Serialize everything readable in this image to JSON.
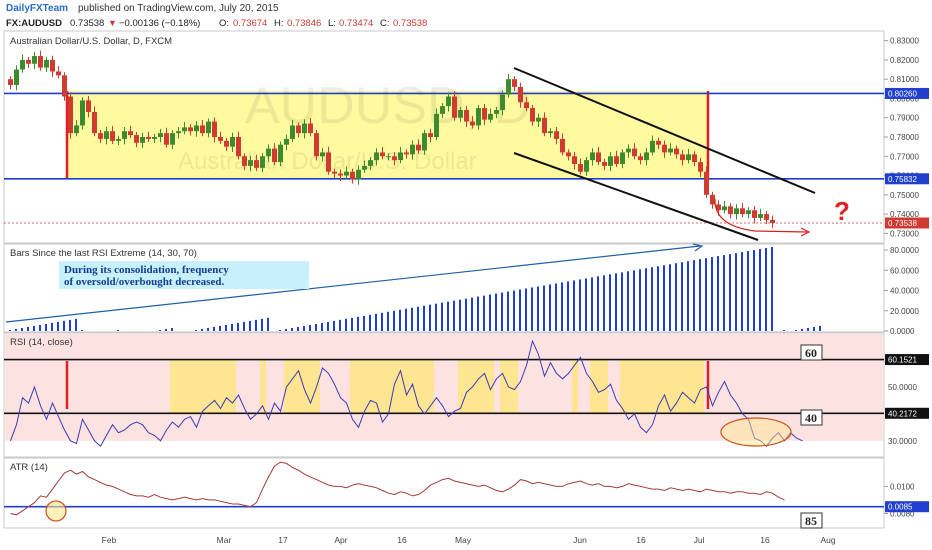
{
  "header": {
    "brand": "DailyFXTeam",
    "published": " published on TradingView.com, July 20, 2015",
    "symbol": "FX:AUDUSD",
    "price": "0.73538",
    "change": "−0.00136 (−0.18%)",
    "o_label": "O:",
    "o_value": "0.73674",
    "h_label": "H:",
    "h_value": "0.73846",
    "l_label": "L:",
    "l_value": "0.73474",
    "c_label": "C:",
    "c_value": "0.73538"
  },
  "colors": {
    "up": "#3d8b2e",
    "down": "#d13a30",
    "consolidation_fill": "#fff9a0",
    "rsi_fill": "#fde2e2",
    "rsi_highlight": "#fde68a",
    "level_line": "#1f3fcc",
    "bar_indicator": "#1f3fcc",
    "atr_line": "#a33b3b",
    "rsi_line": "#3b3bb5",
    "question": "#e02020",
    "annotation_bg": "#c8f0fb"
  },
  "chart_data": [
    {
      "type": "candlestick",
      "title": "Australian Dollar/U.S. Dollar, D, FXCM",
      "watermark_symbol": "AUDUSD, D",
      "watermark_name": "Australian Dollar/U.S. Dollar",
      "xlabels": [
        "Feb",
        "Mar",
        "17",
        "Apr",
        "16",
        "May",
        "Jun",
        "16",
        "Jul",
        "16",
        "Aug"
      ],
      "ylim": [
        0.725,
        0.835
      ],
      "yticks": [
        "0.83000",
        "0.82000",
        "0.81000",
        "0.80000",
        "0.79000",
        "0.78000",
        "0.77000",
        "0.76000",
        "0.75000",
        "0.74000",
        "0.73000"
      ],
      "levels": [
        0.8026,
        0.75832
      ],
      "level_labels": [
        "0.80260",
        "0.75832"
      ],
      "last_price": 0.73538,
      "last_price_label": "0.73538",
      "closes": [
        0.807,
        0.815,
        0.82,
        0.818,
        0.822,
        0.816,
        0.82,
        0.814,
        0.812,
        0.801,
        0.782,
        0.786,
        0.799,
        0.793,
        0.782,
        0.779,
        0.783,
        0.778,
        0.779,
        0.783,
        0.781,
        0.777,
        0.78,
        0.779,
        0.78,
        0.782,
        0.776,
        0.782,
        0.783,
        0.785,
        0.783,
        0.786,
        0.782,
        0.788,
        0.78,
        0.778,
        0.775,
        0.78,
        0.77,
        0.765,
        0.768,
        0.764,
        0.77,
        0.774,
        0.767,
        0.776,
        0.779,
        0.786,
        0.782,
        0.787,
        0.782,
        0.77,
        0.772,
        0.762,
        0.761,
        0.76,
        0.762,
        0.758,
        0.763,
        0.765,
        0.768,
        0.772,
        0.77,
        0.77,
        0.768,
        0.772,
        0.771,
        0.776,
        0.773,
        0.782,
        0.78,
        0.792,
        0.796,
        0.801,
        0.79,
        0.794,
        0.788,
        0.786,
        0.795,
        0.789,
        0.792,
        0.794,
        0.802,
        0.81,
        0.806,
        0.798,
        0.795,
        0.788,
        0.79,
        0.782,
        0.783,
        0.779,
        0.772,
        0.77,
        0.766,
        0.762,
        0.768,
        0.772,
        0.767,
        0.765,
        0.77,
        0.766,
        0.772,
        0.774,
        0.77,
        0.768,
        0.772,
        0.778,
        0.776,
        0.772,
        0.774,
        0.771,
        0.768,
        0.771,
        0.767,
        0.762,
        0.75,
        0.745,
        0.742,
        0.744,
        0.74,
        0.743,
        0.74,
        0.742,
        0.738,
        0.74,
        0.737,
        0.7354
      ]
    },
    {
      "type": "bar",
      "title": "Bars Since the last RSI Extreme (14, 30, 70)",
      "annotation": [
        "During its consolidation, frequency",
        "of oversold/overbought decreased."
      ],
      "ylim": [
        0,
        86
      ],
      "yticks": [
        "80.0000",
        "60.0000",
        "40.0000",
        "20.0000",
        "0.0000"
      ],
      "values": [
        1,
        2,
        3,
        4,
        5,
        6,
        7,
        8,
        9,
        10,
        11,
        12,
        1,
        0,
        0,
        0,
        0,
        0,
        1,
        0,
        0,
        0,
        0,
        0,
        0,
        1,
        2,
        3,
        0,
        0,
        0,
        1,
        2,
        3,
        4,
        5,
        6,
        7,
        8,
        9,
        10,
        11,
        12,
        13,
        0,
        1,
        2,
        3,
        4,
        5,
        6,
        7,
        8,
        9,
        10,
        11,
        12,
        13,
        14,
        15,
        16,
        17,
        18,
        19,
        20,
        21,
        22,
        23,
        24,
        25,
        26,
        27,
        28,
        29,
        30,
        31,
        32,
        33,
        34,
        35,
        36,
        37,
        38,
        39,
        40,
        41,
        42,
        43,
        44,
        45,
        46,
        47,
        48,
        49,
        50,
        51,
        52,
        53,
        54,
        55,
        56,
        57,
        58,
        59,
        60,
        61,
        62,
        63,
        64,
        65,
        66,
        67,
        68,
        69,
        70,
        71,
        72,
        73,
        74,
        75,
        76,
        77,
        78,
        79,
        80,
        81,
        82,
        83,
        0,
        1,
        0,
        1,
        2,
        3,
        4,
        5
      ]
    },
    {
      "type": "line",
      "title": "RSI (14, close)",
      "ylim": [
        24,
        70
      ],
      "yticks": [
        "60.1521",
        "50.0000",
        "40.2172",
        "30.0000"
      ],
      "levels": [
        60.1521,
        40.2172
      ],
      "level_boxes": [
        "60",
        "40"
      ],
      "values": [
        30,
        36,
        46,
        44,
        50,
        43,
        38,
        44,
        39,
        34,
        30,
        29,
        38,
        34,
        30,
        28,
        32,
        36,
        33,
        34,
        36,
        37,
        36,
        33,
        32,
        30,
        34,
        37,
        35,
        38,
        39,
        35,
        41,
        43,
        45,
        42,
        46,
        44,
        47,
        42,
        38,
        40,
        43,
        38,
        44,
        41,
        50,
        53,
        56,
        49,
        44,
        50,
        57,
        55,
        51,
        46,
        44,
        38,
        35,
        41,
        45,
        44,
        37,
        40,
        51,
        56,
        47,
        51,
        43,
        40,
        43,
        46,
        43,
        39,
        41,
        42,
        48,
        50,
        53,
        55,
        49,
        53,
        55,
        50,
        49,
        52,
        58,
        67,
        62,
        54,
        59,
        55,
        53,
        55,
        58,
        61,
        55,
        52,
        48,
        49,
        51,
        45,
        42,
        38,
        40,
        35,
        33,
        36,
        43,
        47,
        41,
        44,
        48,
        46,
        44,
        49,
        50,
        43,
        48,
        52,
        47,
        44,
        40,
        38,
        31,
        30,
        28,
        31,
        33,
        30,
        33,
        31,
        30
      ]
    },
    {
      "type": "line",
      "title": "ATR (14)",
      "ylim": [
        0.007,
        0.0121
      ],
      "yticks": [
        "0.0100",
        "0.0080"
      ],
      "level": 0.0085,
      "level_label": "0.0085",
      "level_box": "85",
      "values": [
        0.008,
        0.0079,
        0.0082,
        0.0085,
        0.0088,
        0.0093,
        0.0092,
        0.0098,
        0.0104,
        0.011,
        0.0112,
        0.0109,
        0.0111,
        0.0107,
        0.0105,
        0.0103,
        0.0101,
        0.01,
        0.0098,
        0.0096,
        0.0094,
        0.0093,
        0.0093,
        0.0092,
        0.0094,
        0.0092,
        0.0091,
        0.009,
        0.0091,
        0.0092,
        0.0091,
        0.009,
        0.0091,
        0.009,
        0.009,
        0.0089,
        0.0088,
        0.0087,
        0.0087,
        0.0086,
        0.0085,
        0.0088,
        0.0098,
        0.0107,
        0.0115,
        0.0118,
        0.0117,
        0.0114,
        0.0112,
        0.0109,
        0.0107,
        0.0105,
        0.0103,
        0.0101,
        0.01,
        0.01,
        0.0099,
        0.0101,
        0.0102,
        0.0101,
        0.01,
        0.0099,
        0.0097,
        0.0095,
        0.0094,
        0.0096,
        0.0095,
        0.0093,
        0.0094,
        0.0097,
        0.0101,
        0.0103,
        0.0105,
        0.0106,
        0.0104,
        0.0103,
        0.0102,
        0.0101,
        0.01,
        0.0101,
        0.0099,
        0.0097,
        0.0096,
        0.0098,
        0.0101,
        0.0105,
        0.0104,
        0.0102,
        0.0103,
        0.0102,
        0.0101,
        0.01,
        0.01,
        0.0102,
        0.0103,
        0.0104,
        0.0102,
        0.0101,
        0.0102,
        0.01,
        0.01,
        0.0099,
        0.01,
        0.0102,
        0.0101,
        0.01,
        0.0099,
        0.0098,
        0.0098,
        0.0097,
        0.0099,
        0.0098,
        0.0097,
        0.0098,
        0.0097,
        0.0096,
        0.0098,
        0.0097,
        0.0096,
        0.0096,
        0.0095,
        0.0096,
        0.0096,
        0.0095,
        0.0095,
        0.0094,
        0.0096,
        0.0095,
        0.0092,
        0.009
      ]
    }
  ]
}
